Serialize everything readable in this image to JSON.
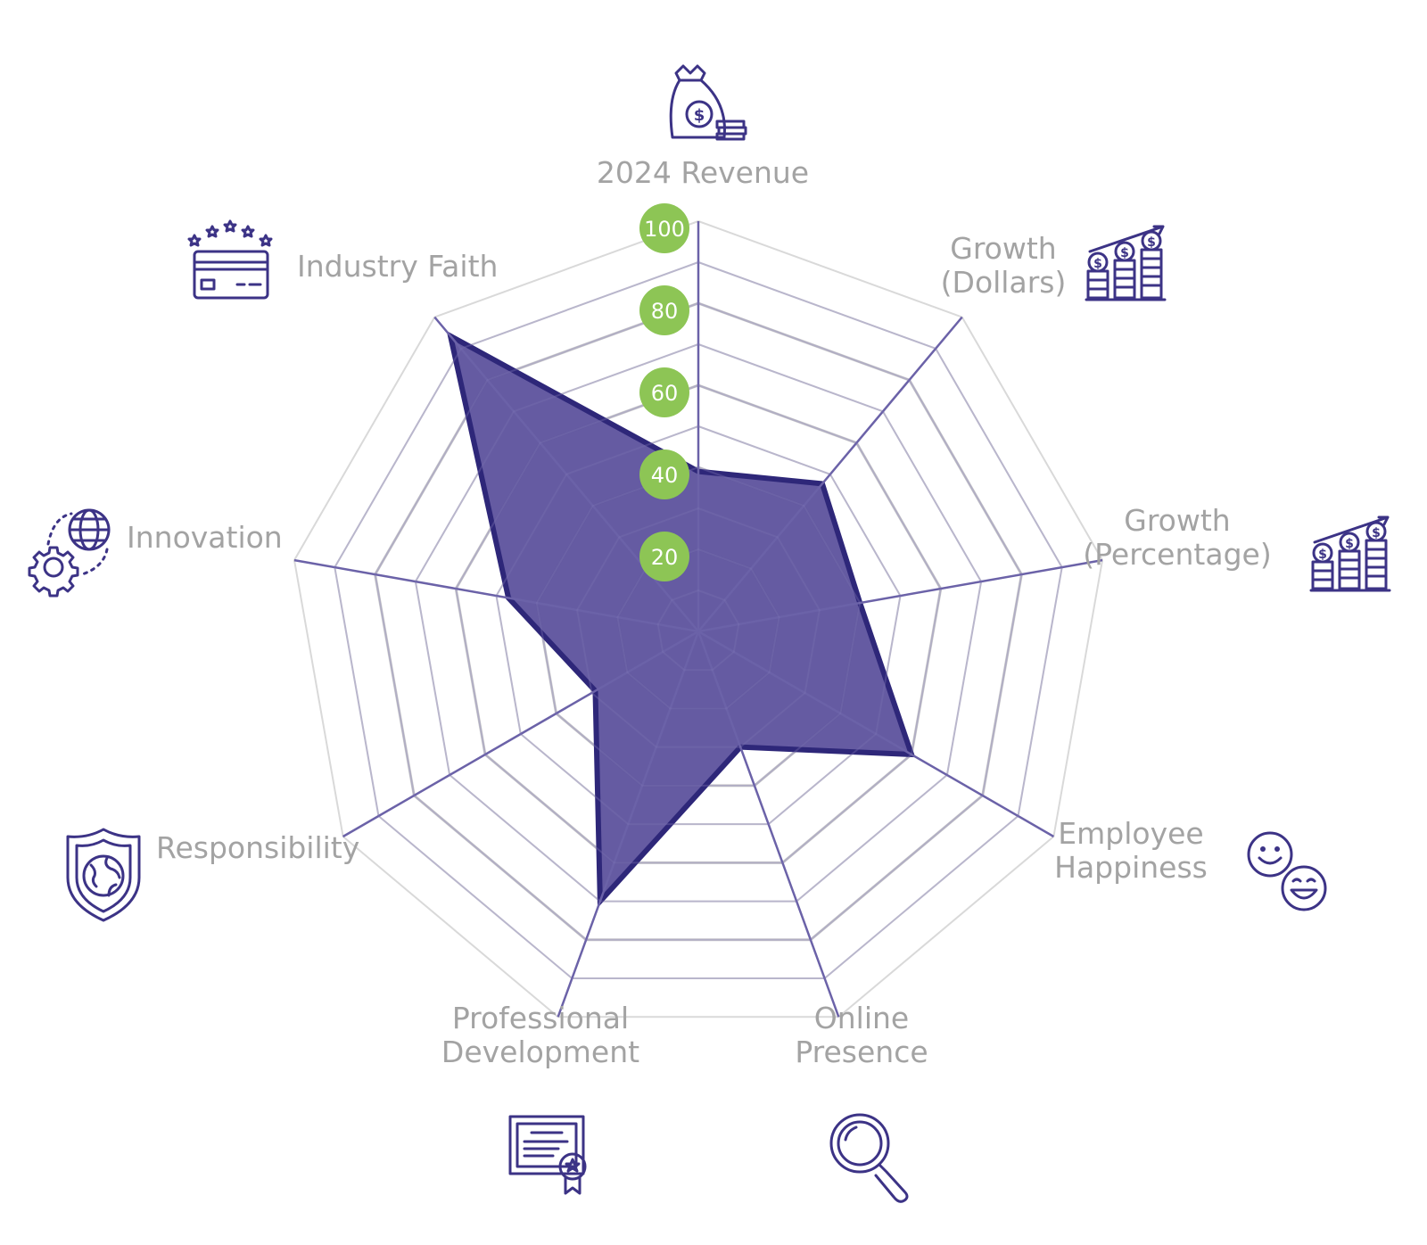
{
  "chart_data": {
    "type": "radar",
    "axes": [
      {
        "label": [
          "2024 Revenue"
        ],
        "icon": "money-bag-icon"
      },
      {
        "label": [
          "Growth",
          "(Dollars)"
        ],
        "icon": "coin-stacks-growth-icon"
      },
      {
        "label": [
          "Growth",
          "(Percentage)"
        ],
        "icon": "coin-stacks-growth-icon"
      },
      {
        "label": [
          "Employee",
          "Happiness"
        ],
        "icon": "smiley-faces-icon"
      },
      {
        "label": [
          "Online",
          "Presence"
        ],
        "icon": "magnifier-icon"
      },
      {
        "label": [
          "Professional",
          "Development"
        ],
        "icon": "certificate-icon"
      },
      {
        "label": [
          "Responsibility"
        ],
        "icon": "shield-globe-icon"
      },
      {
        "label": [
          "Innovation"
        ],
        "icon": "globe-gear-icon"
      },
      {
        "label": [
          "Industry Faith"
        ],
        "icon": "card-stars-icon"
      }
    ],
    "series": [
      {
        "values": [
          39,
          47,
          40,
          60,
          30,
          70,
          29,
          47,
          94
        ]
      }
    ],
    "range": [
      0,
      100
    ],
    "ticks": [
      20,
      40,
      60,
      80,
      100
    ],
    "tick_labels": [
      "20",
      "40",
      "60",
      "80",
      "100"
    ],
    "grid": true,
    "colors": {
      "fill": "#5b519c",
      "stroke": "#2e2779",
      "spoke": "#6b62a8",
      "grid_outer": "#d9d9d9",
      "grid_inner": "#cccccc",
      "tick_badge": "#8dc555",
      "label": "#a3a3a3"
    }
  }
}
